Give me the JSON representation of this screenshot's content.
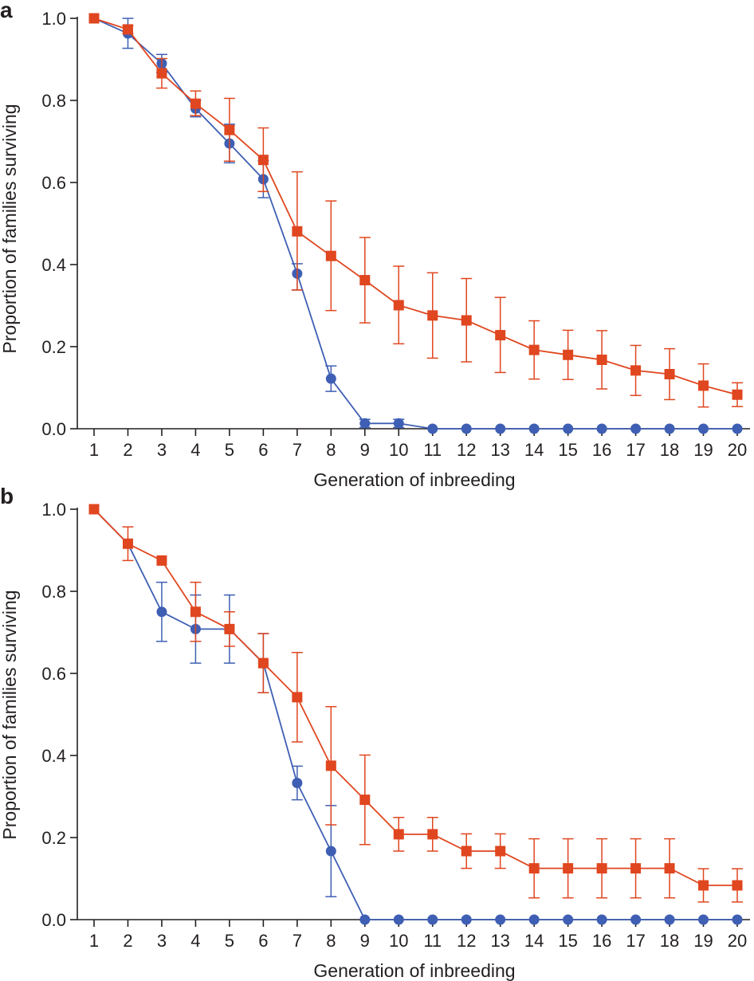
{
  "colors": {
    "series_blue": "#3e5fb3",
    "series_red": "#e0461f",
    "axis": "#231f20"
  },
  "chart_data": [
    {
      "panel_label": "a",
      "type": "line",
      "title": "",
      "xlabel": "Generation of inbreeding",
      "ylabel": "Proportion of families surviving",
      "x": [
        1,
        2,
        3,
        4,
        5,
        6,
        7,
        8,
        9,
        10,
        11,
        12,
        13,
        14,
        15,
        16,
        17,
        18,
        19,
        20
      ],
      "xlim": [
        0.5,
        20.5
      ],
      "ylim": [
        0,
        1.0
      ],
      "y_ticks": [
        "0.0",
        "0.2",
        "0.4",
        "0.6",
        "0.8",
        "1.0"
      ],
      "x_ticks": [
        "1",
        "2",
        "3",
        "4",
        "5",
        "6",
        "7",
        "8",
        "9",
        "10",
        "11",
        "12",
        "13",
        "14",
        "15",
        "16",
        "17",
        "18",
        "19",
        "20"
      ],
      "grid": false,
      "series": [
        {
          "name": "blue circles",
          "color_key": "series_blue",
          "marker": "circle",
          "x": [
            1,
            2,
            3,
            4,
            5,
            6,
            7,
            8,
            9,
            10,
            11,
            12,
            13,
            14,
            15,
            16,
            17,
            18,
            19,
            20
          ],
          "values": [
            1.0,
            0.963,
            0.89,
            0.78,
            0.695,
            0.608,
            0.378,
            0.122,
            0.013,
            0.013,
            0,
            0,
            0,
            0,
            0,
            0,
            0,
            0,
            0,
            0
          ],
          "err_low": [
            1.0,
            0.927,
            0.868,
            0.76,
            0.648,
            0.563,
            0.338,
            0.091,
            0.003,
            0.003,
            0,
            0,
            0,
            0,
            0,
            0,
            0,
            0,
            0,
            0
          ],
          "err_high": [
            1.0,
            1.0,
            0.912,
            0.8,
            0.742,
            0.653,
            0.402,
            0.153,
            0.023,
            0.023,
            0,
            0,
            0,
            0,
            0,
            0,
            0,
            0,
            0,
            0
          ]
        },
        {
          "name": "red squares",
          "color_key": "series_red",
          "marker": "square",
          "x": [
            1,
            2,
            3,
            4,
            5,
            6,
            7,
            8,
            9,
            10,
            11,
            12,
            13,
            14,
            15,
            16,
            17,
            18,
            19,
            20
          ],
          "values": [
            1.0,
            0.973,
            0.866,
            0.792,
            0.728,
            0.655,
            0.481,
            0.421,
            0.362,
            0.301,
            0.276,
            0.264,
            0.228,
            0.192,
            0.18,
            0.168,
            0.142,
            0.133,
            0.105,
            0.083
          ],
          "err_low": [
            1.0,
            0.963,
            0.83,
            0.763,
            0.652,
            0.578,
            0.338,
            0.288,
            0.258,
            0.207,
            0.172,
            0.163,
            0.137,
            0.121,
            0.12,
            0.097,
            0.081,
            0.071,
            0.053,
            0.054
          ],
          "err_high": [
            1.0,
            0.983,
            0.902,
            0.823,
            0.805,
            0.733,
            0.626,
            0.555,
            0.466,
            0.396,
            0.38,
            0.366,
            0.32,
            0.263,
            0.24,
            0.239,
            0.203,
            0.195,
            0.158,
            0.112
          ]
        }
      ]
    },
    {
      "panel_label": "b",
      "type": "line",
      "title": "",
      "xlabel": "Generation of inbreeding",
      "ylabel": "Proportion of families surviving",
      "x": [
        1,
        2,
        3,
        4,
        5,
        6,
        7,
        8,
        9,
        10,
        11,
        12,
        13,
        14,
        15,
        16,
        17,
        18,
        19,
        20
      ],
      "xlim": [
        0.5,
        20.5
      ],
      "ylim": [
        0,
        1.0
      ],
      "y_ticks": [
        "0.0",
        "0.2",
        "0.4",
        "0.6",
        "0.8",
        "1.0"
      ],
      "x_ticks": [
        "1",
        "2",
        "3",
        "4",
        "5",
        "6",
        "7",
        "8",
        "9",
        "10",
        "11",
        "12",
        "13",
        "14",
        "15",
        "16",
        "17",
        "18",
        "19",
        "20"
      ],
      "grid": false,
      "series": [
        {
          "name": "blue circles",
          "color_key": "series_blue",
          "marker": "circle",
          "x": [
            1,
            2,
            3,
            4,
            5,
            6,
            7,
            8,
            9,
            10,
            11,
            12,
            13,
            14,
            15,
            16,
            17,
            18,
            19,
            20
          ],
          "values": [
            1.0,
            0.916,
            0.75,
            0.708,
            0.708,
            0.625,
            0.333,
            0.167,
            0,
            0,
            0,
            0,
            0,
            0,
            0,
            0,
            0,
            0,
            0,
            0
          ],
          "err_low": [
            1.0,
            0.916,
            0.678,
            0.625,
            0.625,
            0.553,
            0.292,
            0.056,
            0,
            0,
            0,
            0,
            0,
            0,
            0,
            0,
            0,
            0,
            0,
            0
          ],
          "err_high": [
            1.0,
            0.916,
            0.822,
            0.791,
            0.791,
            0.697,
            0.374,
            0.278,
            0,
            0,
            0,
            0,
            0,
            0,
            0,
            0,
            0,
            0,
            0,
            0
          ]
        },
        {
          "name": "red squares",
          "color_key": "series_red",
          "marker": "square",
          "x": [
            1,
            2,
            3,
            4,
            5,
            6,
            7,
            8,
            9,
            10,
            11,
            12,
            13,
            14,
            15,
            16,
            17,
            18,
            19,
            20
          ],
          "values": [
            1.0,
            0.916,
            0.875,
            0.75,
            0.708,
            0.625,
            0.542,
            0.375,
            0.292,
            0.208,
            0.208,
            0.167,
            0.167,
            0.125,
            0.125,
            0.125,
            0.125,
            0.125,
            0.0835,
            0.0835
          ],
          "err_low": [
            1.0,
            0.875,
            0.875,
            0.678,
            0.666,
            0.553,
            0.433,
            0.231,
            0.183,
            0.167,
            0.167,
            0.125,
            0.125,
            0.053,
            0.053,
            0.053,
            0.053,
            0.053,
            0.043,
            0.043
          ],
          "err_high": [
            1.0,
            0.957,
            0.875,
            0.822,
            0.75,
            0.697,
            0.651,
            0.519,
            0.401,
            0.249,
            0.249,
            0.209,
            0.209,
            0.197,
            0.197,
            0.197,
            0.197,
            0.197,
            0.124,
            0.124
          ]
        }
      ]
    }
  ]
}
